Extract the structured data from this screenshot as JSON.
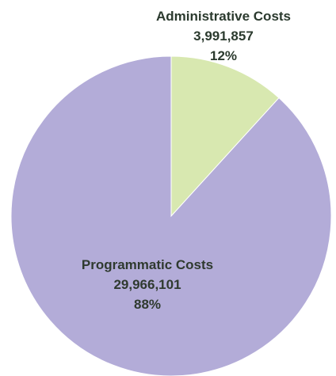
{
  "chart_data": {
    "type": "pie",
    "title": "",
    "start_angle_deg": 0,
    "direction": "clockwise",
    "slices": [
      {
        "label": "Administrative Costs",
        "value": 3991857,
        "value_label": "3,991,857",
        "percent_label": "12%",
        "color": "#d8e8b0"
      },
      {
        "label": "Programmatic Costs",
        "value": 29966101,
        "value_label": "29,966,101",
        "percent_label": "88%",
        "color": "#b3acd8"
      }
    ],
    "legend": "none",
    "label_placement": "on-slice"
  }
}
